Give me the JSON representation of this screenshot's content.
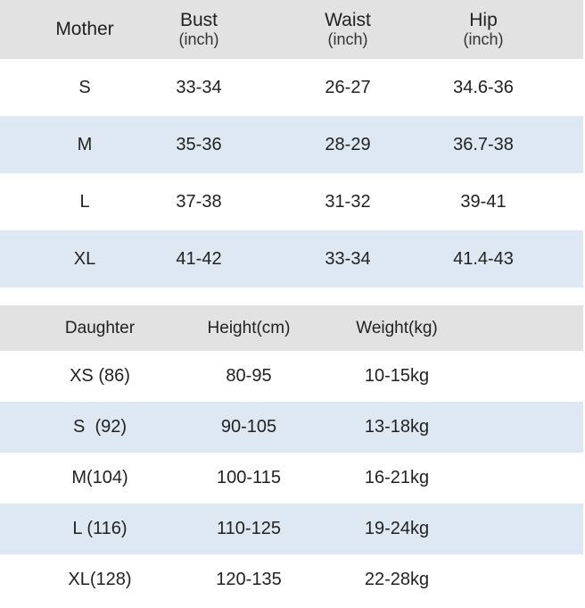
{
  "mother": {
    "headers": [
      {
        "main": "Mother",
        "unit": ""
      },
      {
        "main": "Bust",
        "unit": "(inch)"
      },
      {
        "main": "Waist",
        "unit": "(inch)"
      },
      {
        "main": "Hip",
        "unit": "(inch)"
      }
    ],
    "rows": [
      [
        "S",
        "33-34",
        "26-27",
        "34.6-36"
      ],
      [
        "M",
        "35-36",
        "28-29",
        "36.7-38"
      ],
      [
        "L",
        "37-38",
        "31-32",
        "39-41"
      ],
      [
        "XL",
        "41-42",
        "33-34",
        "41.4-43"
      ]
    ]
  },
  "daughter": {
    "headers": [
      "Daughter",
      "Height(cm)",
      "Weight(kg)"
    ],
    "rows": [
      [
        "XS (86)",
        "80-95",
        "10-15kg"
      ],
      [
        "S  (92)",
        "90-105",
        "13-18kg"
      ],
      [
        "M(104)",
        "100-115",
        "16-21kg"
      ],
      [
        "L (116)",
        "110-125",
        "19-24kg"
      ],
      [
        "XL(128)",
        "120-135",
        "22-28kg"
      ]
    ]
  },
  "colors": {
    "header_bg": "#e2e2e2",
    "alt_row_bg": "#dde8f3",
    "row_bg": "#ffffff"
  }
}
